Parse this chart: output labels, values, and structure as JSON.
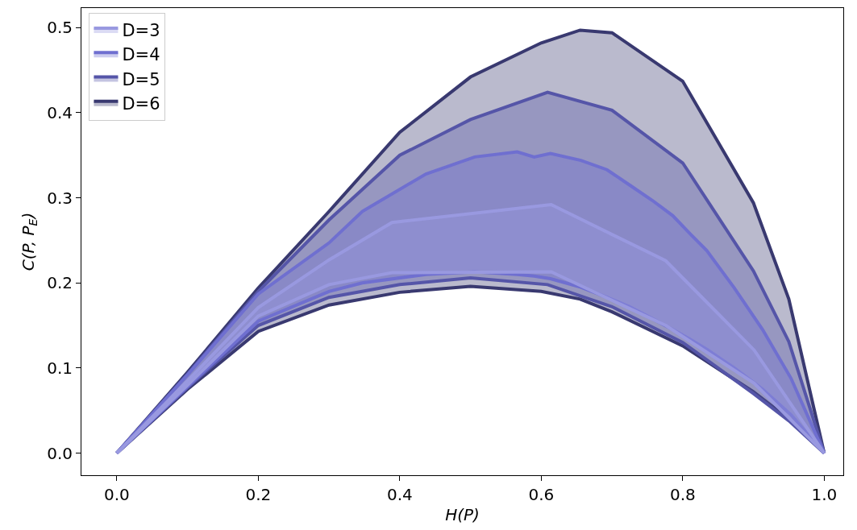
{
  "chart_data": {
    "type": "line",
    "xlabel": "H(P)",
    "ylabel": "C(P, P$_{E}$)",
    "xlim": [
      -0.05,
      1.027
    ],
    "ylim": [
      -0.026,
      0.523
    ],
    "xticks": [
      {
        "value": 0,
        "label": "0.0"
      },
      {
        "value": 0.2,
        "label": "0.2"
      },
      {
        "value": 0.4,
        "label": "0.4"
      },
      {
        "value": 0.6,
        "label": "0.6"
      },
      {
        "value": 0.8,
        "label": "0.8"
      },
      {
        "value": 1,
        "label": "1.0"
      }
    ],
    "yticks": [
      {
        "value": 0,
        "label": "0.0"
      },
      {
        "value": 0.1,
        "label": "0.1"
      },
      {
        "value": 0.2,
        "label": "0.2"
      },
      {
        "value": 0.3,
        "label": "0.3"
      },
      {
        "value": 0.4,
        "label": "0.4"
      },
      {
        "value": 0.5,
        "label": "0.5"
      }
    ],
    "grid": false,
    "legend": "top left",
    "line_style": "solid",
    "marker": "none",
    "series": [
      {
        "color": "#393970",
        "x": [
          0,
          0.1,
          0.2,
          0.3,
          0.4,
          0.5,
          0.6,
          0.655,
          0.7,
          0.8,
          0.9,
          0.95,
          1
        ],
        "values": [
          0,
          0.075,
          0.143,
          0.174,
          0.189,
          0.196,
          0.19,
          0.181,
          0.166,
          0.126,
          0.072,
          0.04,
          0
        ]
      },
      {
        "name": "D=6",
        "type": "area",
        "color": "#393970",
        "x": [
          0,
          0.1,
          0.2,
          0.3,
          0.4,
          0.5,
          0.6,
          0.655,
          0.7,
          0.8,
          0.9,
          0.95,
          1
        ],
        "values": [
          0,
          0.095,
          0.194,
          0.284,
          0.377,
          0.442,
          0.482,
          0.497,
          0.494,
          0.437,
          0.294,
          0.181,
          0
        ]
      },
      {
        "color": "#5555a8",
        "x": [
          0,
          0.1,
          0.2,
          0.3,
          0.4,
          0.5,
          0.609,
          0.7,
          0.8,
          0.9,
          0.95,
          1
        ],
        "values": [
          0,
          0.077,
          0.15,
          0.183,
          0.198,
          0.206,
          0.198,
          0.172,
          0.13,
          0.07,
          0.038,
          0
        ]
      },
      {
        "name": "D=5",
        "type": "area",
        "color": "#5555a8",
        "x": [
          0,
          0.1,
          0.2,
          0.3,
          0.4,
          0.5,
          0.609,
          0.7,
          0.8,
          0.9,
          0.95,
          1
        ],
        "values": [
          0,
          0.093,
          0.19,
          0.274,
          0.35,
          0.392,
          0.424,
          0.403,
          0.341,
          0.214,
          0.131,
          0
        ]
      },
      {
        "color": "#6f6fd0",
        "x": [
          0,
          0.1,
          0.2,
          0.3,
          0.347,
          0.437,
          0.506,
          0.566,
          0.59,
          0.613,
          0.656,
          0.693,
          0.725,
          0.757,
          0.786,
          0.81,
          0.834,
          0.873,
          0.913,
          0.953,
          1
        ],
        "values": [
          0,
          0.078,
          0.155,
          0.19,
          0.2,
          0.21,
          0.213,
          0.21,
          0.208,
          0.205,
          0.195,
          0.183,
          0.172,
          0.158,
          0.145,
          0.134,
          0.122,
          0.1,
          0.075,
          0.045,
          0
        ]
      },
      {
        "name": "D=4",
        "type": "area",
        "color": "#6f6fd0",
        "x": [
          0,
          0.1,
          0.2,
          0.3,
          0.347,
          0.437,
          0.506,
          0.566,
          0.59,
          0.613,
          0.656,
          0.693,
          0.725,
          0.757,
          0.786,
          0.81,
          0.834,
          0.873,
          0.913,
          0.953,
          1
        ],
        "values": [
          0,
          0.092,
          0.187,
          0.247,
          0.284,
          0.328,
          0.348,
          0.354,
          0.348,
          0.352,
          0.344,
          0.333,
          0.315,
          0.297,
          0.279,
          0.258,
          0.238,
          0.194,
          0.145,
          0.088,
          0
        ]
      },
      {
        "color": "#9999e0",
        "x": [
          0,
          0.1,
          0.2,
          0.3,
          0.389,
          0.614,
          0.776,
          0.901,
          1
        ],
        "values": [
          0,
          0.08,
          0.161,
          0.198,
          0.212,
          0.213,
          0.15,
          0.082,
          0
        ]
      },
      {
        "name": "D=3",
        "type": "area",
        "color": "#9999e0",
        "x": [
          0,
          0.1,
          0.2,
          0.3,
          0.389,
          0.614,
          0.776,
          0.901,
          1
        ],
        "values": [
          0,
          0.085,
          0.171,
          0.227,
          0.271,
          0.292,
          0.226,
          0.121,
          0
        ]
      }
    ]
  }
}
